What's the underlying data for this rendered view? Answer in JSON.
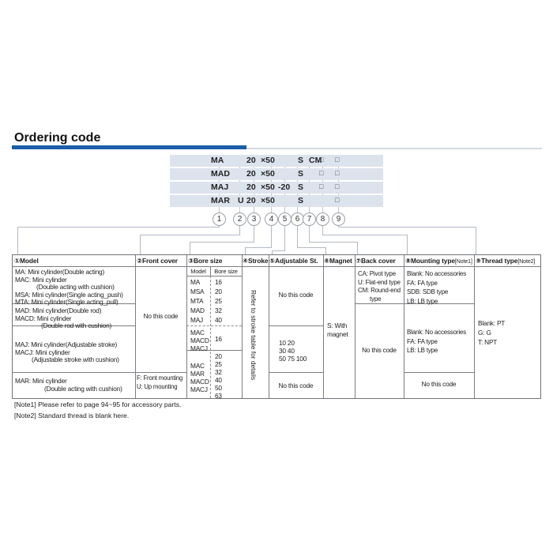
{
  "title": "Ordering code",
  "colors": {
    "accent": "#1a5fa8",
    "band": "#dce3ed"
  },
  "ordering_example": {
    "rows": [
      {
        "model": "MA",
        "front": "",
        "bore": "20",
        "stroke": "×50",
        "adjustable": "",
        "magnet": "S",
        "back": "CM",
        "mounting": "□",
        "thread": "□"
      },
      {
        "model": "MAD",
        "front": "",
        "bore": "20",
        "stroke": "×50",
        "adjustable": "",
        "magnet": "S",
        "back": "",
        "mounting": "□",
        "thread": "□"
      },
      {
        "model": "MAJ",
        "front": "",
        "bore": "20",
        "stroke": "×50",
        "adjustable": "-20",
        "magnet": "S",
        "back": "",
        "mounting": "□",
        "thread": "□"
      },
      {
        "model": "MAR",
        "front": "U",
        "bore": "20",
        "stroke": "×50",
        "adjustable": "",
        "magnet": "S",
        "back": "",
        "mounting": "",
        "thread": "□"
      }
    ],
    "position_numbers": [
      "1",
      "2",
      "3",
      "4",
      "5",
      "6",
      "7",
      "8",
      "9"
    ]
  },
  "table": {
    "headers": [
      {
        "num": "①",
        "label": "Model",
        "note": ""
      },
      {
        "num": "②",
        "label": "Front cover",
        "note": ""
      },
      {
        "num": "③",
        "label": "Bore size",
        "note": ""
      },
      {
        "num": "④",
        "label": "Stroke",
        "note": ""
      },
      {
        "num": "⑤",
        "label": "Adjustable St.",
        "note": ""
      },
      {
        "num": "⑥",
        "label": "Magnet",
        "note": ""
      },
      {
        "num": "⑦",
        "label": "Back cover",
        "note": ""
      },
      {
        "num": "⑧",
        "label": "Mounting type",
        "note": "[Note1]"
      },
      {
        "num": "⑨",
        "label": "Thread type",
        "note": "[Note2]"
      }
    ],
    "model_rows": {
      "g1": [
        "MA: Mini cylinder(Double acting)",
        "MAC: Mini cylinder",
        "(Double acting with cushion)",
        "MSA: Mini cylinder(Single acting_push)",
        "MTA: Mini cylinder(Single acting_pull)"
      ],
      "g2": [
        "MAD: Mini cylinder(Double rod)",
        "MACD: Mini cylinder",
        "(Double rod with cushion)"
      ],
      "g3": [
        "MAJ: Mini cylinder(Adjustable stroke)",
        "MACJ: Mini cylinder",
        "(Adjustable stroke with cushion)"
      ],
      "g4": [
        "MAR: Mini cylinder",
        "(Double acting with cushion)"
      ]
    },
    "front_cover": {
      "main": "No this code",
      "f": "F: Front mounting",
      "u": "U: Up mounting"
    },
    "bore_size": {
      "sub_header_model": "Model",
      "sub_header_size": "Bore size",
      "group1": {
        "models": [
          "MA",
          "MSA",
          "MTA",
          "MAD",
          "MAJ"
        ],
        "sizes": [
          "16",
          "20",
          "25",
          "32",
          "40"
        ]
      },
      "group2": {
        "models": [
          "MAC",
          "MACD",
          "MACJ"
        ],
        "size": "16"
      },
      "group3": {
        "models": [
          "MAC",
          "MAR",
          "MACD",
          "MACJ"
        ],
        "sizes": [
          "20",
          "25",
          "32",
          "40",
          "50",
          "63"
        ]
      }
    },
    "stroke": {
      "text": "Refer to stroke table for details"
    },
    "adjustable": {
      "top": "No this code",
      "mid": [
        "10 20",
        "30 40",
        "50 75 100"
      ],
      "bottom": "No this code"
    },
    "magnet": {
      "lines": [
        "S: With",
        "magnet"
      ]
    },
    "back_cover": {
      "top": [
        "CA: Pivot type",
        "U: Flat-end type",
        "CM: Round-end",
        "type"
      ],
      "bottom": "No this code"
    },
    "mounting": {
      "s1": [
        "Blank: No accessories",
        "FA: FA type",
        "SDB: SDB type",
        "LB: LB type"
      ],
      "s2": [
        "Blank: No accessories",
        "FA: FA type",
        "LB: LB type"
      ],
      "s3": "No this code"
    },
    "thread": {
      "lines": [
        "Blank: PT",
        "G: G",
        "T: NPT"
      ]
    }
  },
  "notes": {
    "note1": "[Note1]  Please refer to page 94~95 for accessory parts.",
    "note2": "[Note2]  Standard thread is blank here."
  }
}
